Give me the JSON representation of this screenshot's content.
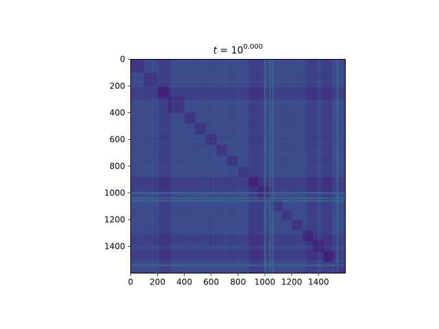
{
  "chart_data": {
    "type": "heatmap",
    "title": {
      "variable": "t",
      "equals": " = 10",
      "exponent": "0.000"
    },
    "xlabel": "",
    "ylabel": "",
    "matrix_size": 1600,
    "xlim": [
      0,
      1600
    ],
    "ylim": [
      1600,
      0
    ],
    "x_ticks": [
      0,
      200,
      400,
      600,
      800,
      1000,
      1200,
      1400
    ],
    "y_ticks": [
      0,
      200,
      400,
      600,
      800,
      1000,
      1200,
      1400
    ],
    "x_tick_labels": [
      "0",
      "200",
      "400",
      "600",
      "800",
      "1000",
      "1200",
      "1400"
    ],
    "y_tick_labels": [
      "0",
      "200",
      "400",
      "600",
      "800",
      "1000",
      "1200",
      "1400"
    ],
    "colormap": "viridis",
    "base_color": "#3b4f8e",
    "dark_color": "#43207a",
    "light_color": "#3d7f96",
    "diagonal_blocks": [
      [
        0,
        100
      ],
      [
        100,
        200
      ],
      [
        200,
        280
      ],
      [
        280,
        400
      ],
      [
        400,
        480
      ],
      [
        480,
        560
      ],
      [
        560,
        640
      ],
      [
        640,
        720
      ],
      [
        720,
        800
      ],
      [
        800,
        880
      ],
      [
        880,
        950
      ],
      [
        950,
        1050
      ],
      [
        1050,
        1130
      ],
      [
        1130,
        1200
      ],
      [
        1200,
        1280
      ],
      [
        1280,
        1360
      ],
      [
        1360,
        1440
      ],
      [
        1440,
        1520
      ],
      [
        1520,
        1600
      ]
    ],
    "dark_bands": [
      [
        210,
        300
      ],
      [
        880,
        990
      ],
      [
        1310,
        1390
      ],
      [
        1420,
        1500
      ]
    ],
    "light_lines": [
      1000,
      1040,
      1060,
      1540
    ],
    "grid": false,
    "legend": "none"
  }
}
